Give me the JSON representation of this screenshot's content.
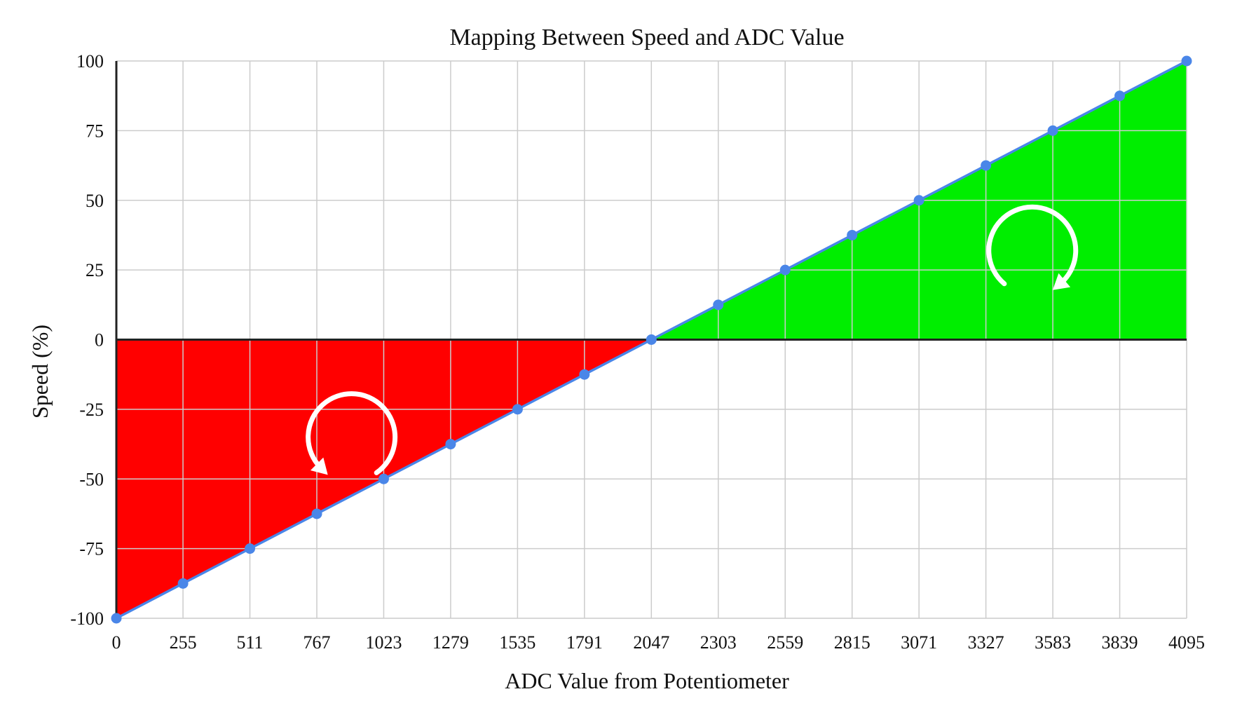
{
  "chart_data": {
    "type": "line",
    "title": "Mapping Between Speed and ADC Value",
    "xlabel": "ADC Value from Potentiometer",
    "ylabel": "Speed (%)",
    "xlim": [
      0,
      4095
    ],
    "ylim": [
      -100,
      100
    ],
    "x_ticks": [
      "0",
      "255",
      "511",
      "767",
      "1023",
      "1279",
      "1535",
      "1791",
      "2047",
      "2303",
      "2559",
      "2815",
      "3071",
      "3327",
      "3583",
      "3839",
      "4095"
    ],
    "y_ticks": [
      "100",
      "75",
      "50",
      "25",
      "0",
      "-25",
      "-50",
      "-75",
      "-100"
    ],
    "grid": true,
    "series": [
      {
        "x": [
          0,
          255,
          511,
          767,
          1023,
          1279,
          1535,
          1791,
          2047,
          2303,
          2559,
          2815,
          3071,
          3327,
          3583,
          3839,
          4095
        ],
        "y": [
          -100,
          -87.5,
          -75,
          -62.5,
          -50,
          -37.5,
          -25,
          -12.5,
          0,
          12.5,
          25,
          37.5,
          50,
          62.5,
          75,
          87.5,
          100
        ]
      }
    ],
    "fills": [
      {
        "region": "below zero",
        "color": "#ff0000"
      },
      {
        "region": "above zero",
        "color": "#00ee00"
      }
    ],
    "annotations": [
      {
        "kind": "rotation-arrow",
        "icon": "clockwise-arrow-icon",
        "region": "negative"
      },
      {
        "kind": "rotation-arrow",
        "icon": "counterclockwise-arrow-icon",
        "region": "positive"
      }
    ],
    "colors": {
      "line": "#4a86e8",
      "grid": "#cccccc",
      "axis": "#222222"
    }
  }
}
